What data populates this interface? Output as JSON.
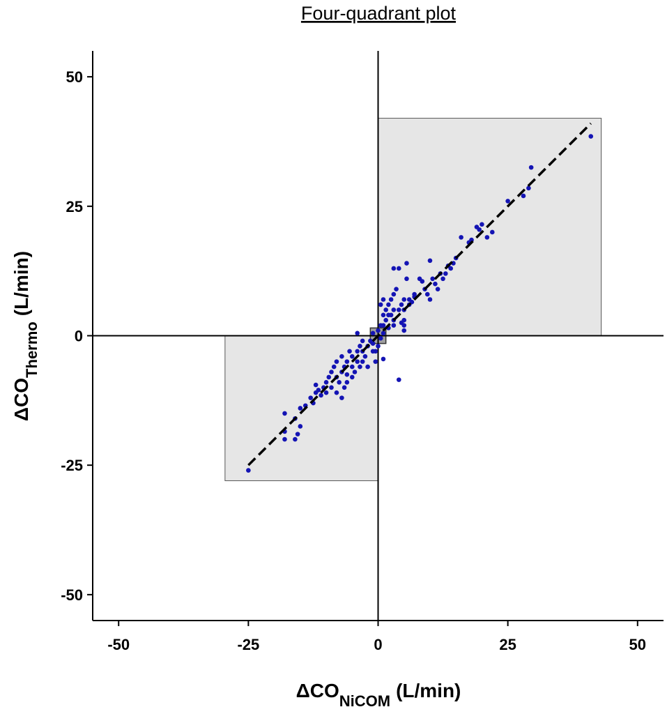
{
  "chart_data": {
    "type": "scatter",
    "title": "Four-quadrant plot",
    "xlabel": {
      "main": "ΔCO",
      "sub": "NiCOM",
      "unit": "(L/min)"
    },
    "ylabel": {
      "main": "ΔCO",
      "sub": "Thermo",
      "unit": "(L/min)"
    },
    "xlim": [
      -55,
      55
    ],
    "ylim": [
      -55,
      55
    ],
    "xticks": [
      -50,
      -25,
      0,
      25,
      50
    ],
    "yticks": [
      -50,
      -25,
      0,
      25,
      50
    ],
    "color": "#1414b4",
    "regions": [
      {
        "x": [
          0,
          43
        ],
        "y": [
          0,
          42
        ],
        "color": "#e6e6e6"
      },
      {
        "x": [
          -29.5,
          0
        ],
        "y": [
          -28,
          0
        ],
        "color": "#e6e6e6"
      },
      {
        "x": [
          -1.5,
          1.5
        ],
        "y": [
          -1.5,
          1.5
        ],
        "color": "#a0a0a0"
      }
    ],
    "fit_line": {
      "x": [
        -25,
        41
      ],
      "y": [
        -25,
        41
      ]
    },
    "x": [
      41,
      29.5,
      29,
      28,
      25,
      22,
      21,
      20,
      19.5,
      19,
      18,
      17.5,
      16,
      15,
      14.5,
      14,
      13.5,
      13,
      12.5,
      12,
      11.5,
      11,
      10.5,
      10,
      10,
      9.5,
      9,
      8.5,
      7,
      6,
      6,
      5.5,
      5.5,
      5,
      5,
      5,
      5,
      5,
      4.5,
      4,
      4,
      3.5,
      3,
      3,
      3,
      3,
      3,
      2.5,
      2.5,
      2,
      2,
      2,
      1.5,
      1.5,
      1,
      1,
      1,
      1,
      0.5,
      0.5,
      0.5,
      0,
      4,
      1,
      0,
      -0.5,
      -1,
      7,
      8,
      6.5,
      4.5,
      -25,
      -18,
      -18,
      -18,
      -16,
      -16,
      -15.5,
      -15,
      -15,
      -14,
      -13,
      -12.5,
      -12,
      -11.5,
      -11,
      -10,
      -10,
      -9.5,
      -9,
      -9,
      -8.5,
      -8,
      -8,
      -8,
      -7.5,
      -7,
      -7,
      -6.5,
      -6.5,
      -6,
      -6,
      -5.5,
      -5,
      -5,
      -5,
      -4.5,
      -4,
      -4,
      -4,
      -3.5,
      -3.5,
      -3,
      -3,
      -3,
      -2.5,
      -2,
      -2,
      -1.5,
      -1,
      -1,
      -0.5,
      -10.5,
      -12,
      -7,
      -6
    ],
    "values": [
      38.5,
      32.5,
      28.5,
      27,
      26,
      20,
      19,
      21.5,
      20.5,
      21,
      18.5,
      18,
      19,
      15,
      14,
      13,
      13.5,
      12,
      11,
      12,
      9,
      10,
      11,
      14.5,
      7,
      8,
      9,
      10.5,
      8,
      7,
      6,
      14,
      11,
      7,
      5,
      3,
      2,
      1,
      6,
      5,
      13,
      9,
      13,
      8,
      5,
      3,
      2,
      7,
      4,
      6,
      4,
      1.5,
      5,
      3,
      7,
      4,
      2,
      0.5,
      6,
      2,
      -0.5,
      1,
      -8.5,
      -4.5,
      -2,
      -3,
      0.5,
      7.5,
      11,
      6.5,
      2.5,
      -26,
      -15,
      -18.5,
      -20,
      -20,
      -16,
      -19,
      -17.5,
      -14,
      -13.5,
      -12,
      -13,
      -11,
      -10.5,
      -11.5,
      -9,
      -11,
      -8,
      -10,
      -7,
      -6,
      -11,
      -8,
      -5,
      -9,
      -7,
      -4,
      -10,
      -6,
      -9,
      -5,
      -3,
      -8,
      -6,
      -4,
      -7,
      -5,
      -3,
      0.5,
      -6,
      -2,
      -5,
      -3,
      -1,
      -4,
      -2,
      -6,
      -1,
      -3,
      -1.5,
      -5,
      -10,
      -9.5,
      -12,
      -7.5
    ]
  }
}
